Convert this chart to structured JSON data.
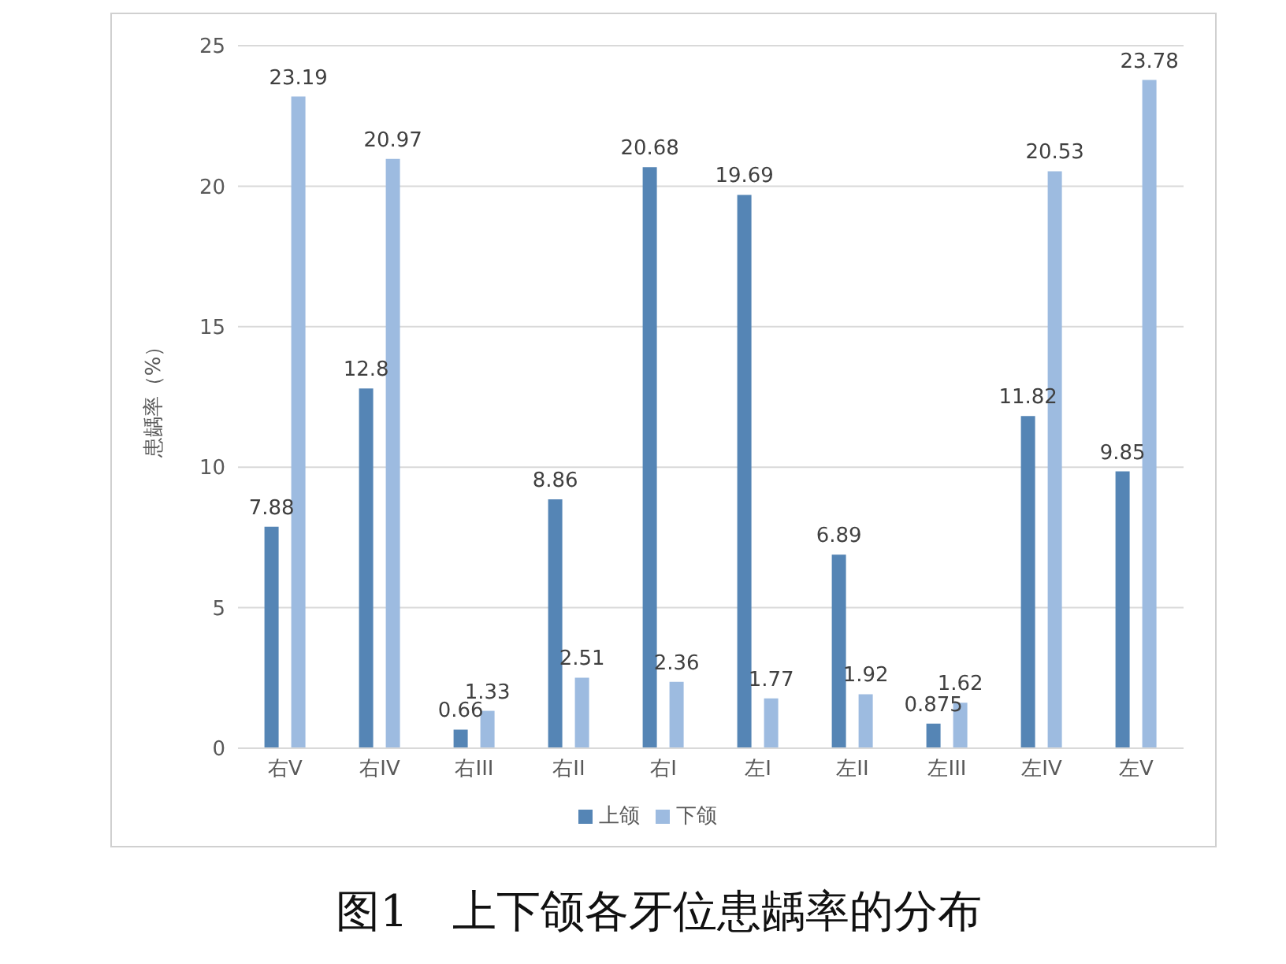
{
  "chart_data": {
    "type": "bar",
    "title": "图1　上下颌各牙位患龋率的分布",
    "ylabel": "患龋率（%）",
    "categories": [
      "右V",
      "右IV",
      "右III",
      "右II",
      "右I",
      "左I",
      "左II",
      "左III",
      "左IV",
      "左V"
    ],
    "series": [
      {
        "name": "上颌",
        "color": "#5585b5",
        "values": [
          7.88,
          12.8,
          0.66,
          8.86,
          20.68,
          19.69,
          6.89,
          0.875,
          11.82,
          9.85
        ]
      },
      {
        "name": "下颌",
        "color": "#9dbbe0",
        "values": [
          23.19,
          20.97,
          1.33,
          2.51,
          2.36,
          1.77,
          1.92,
          1.62,
          20.53,
          23.78
        ]
      }
    ],
    "ylim": [
      0,
      25
    ],
    "yticks": [
      0,
      5,
      10,
      15,
      20,
      25
    ],
    "grid": "y",
    "legend": "bottom",
    "data_labels": true
  }
}
